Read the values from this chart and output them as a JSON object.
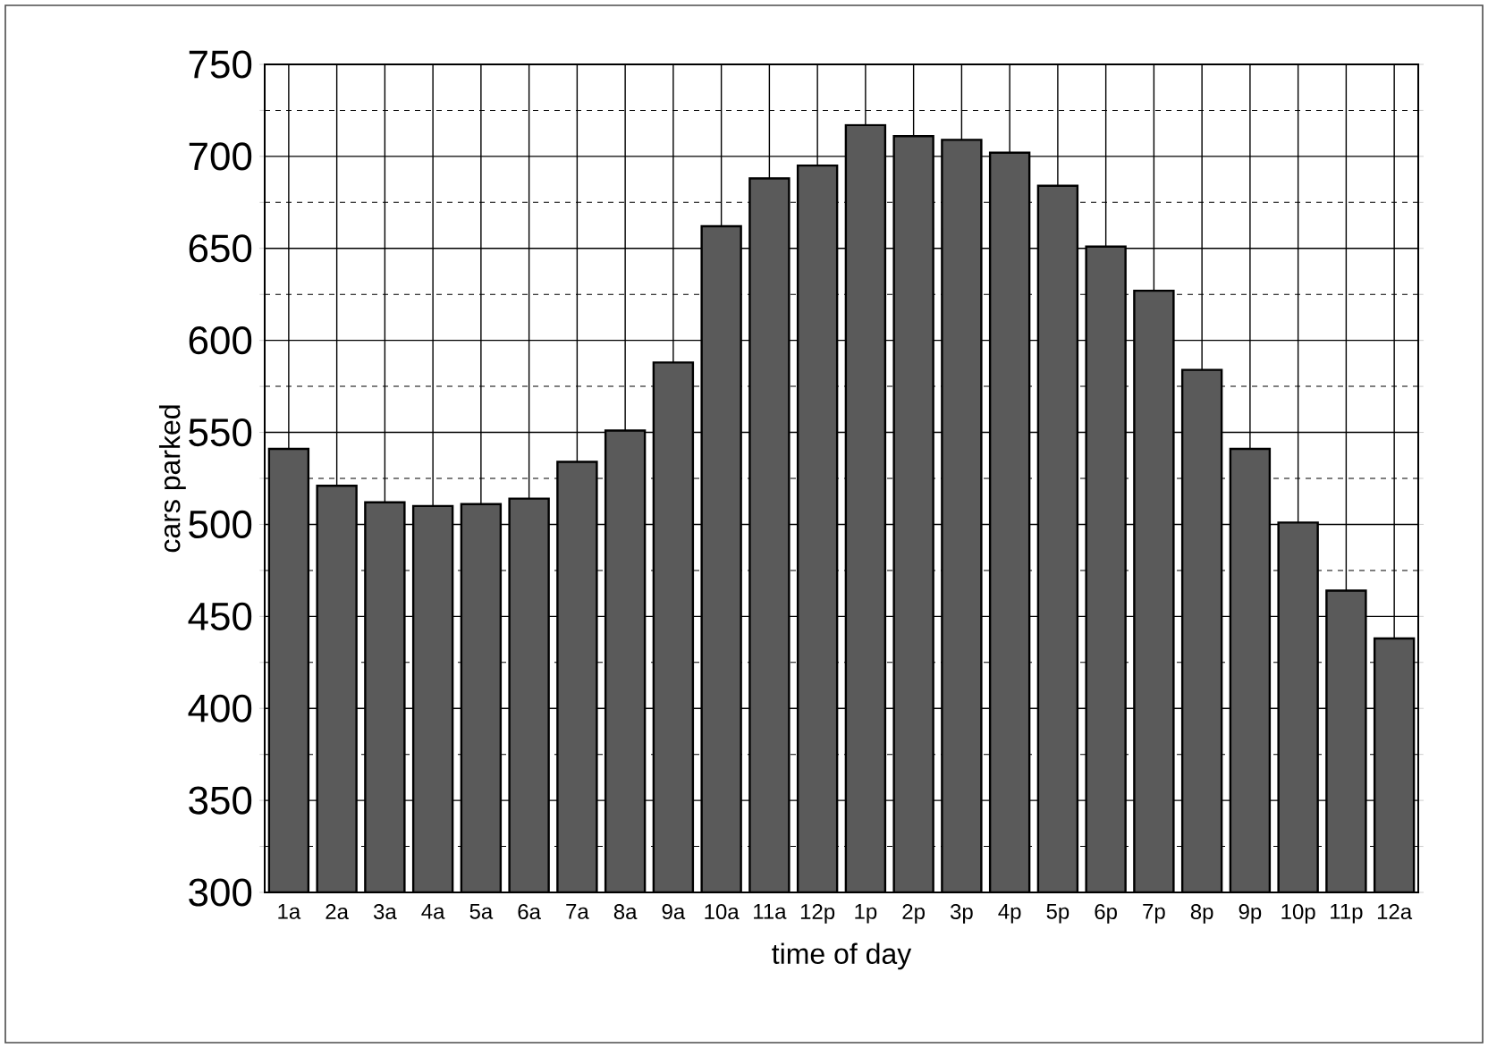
{
  "chart_data": {
    "type": "bar",
    "xlabel": "time of day",
    "ylabel": "cars parked",
    "categories": [
      "1a",
      "2a",
      "3a",
      "4a",
      "5a",
      "6a",
      "7a",
      "8a",
      "9a",
      "10a",
      "11a",
      "12p",
      "1p",
      "2p",
      "3p",
      "4p",
      "5p",
      "6p",
      "7p",
      "8p",
      "9p",
      "10p",
      "11p",
      "12a"
    ],
    "values": [
      541,
      521,
      512,
      510,
      511,
      514,
      534,
      551,
      588,
      662,
      688,
      695,
      717,
      711,
      709,
      702,
      684,
      651,
      627,
      584,
      541,
      501,
      464,
      438
    ],
    "color": "#5a5a5a",
    "ylim": [
      300,
      750
    ],
    "yticks": [
      300,
      350,
      400,
      450,
      500,
      550,
      600,
      650,
      700,
      750
    ],
    "grid": true
  }
}
